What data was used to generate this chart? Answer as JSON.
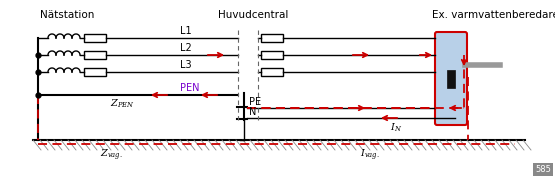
{
  "bg_color": "#ffffff",
  "line_color": "#000000",
  "red_color": "#cc0000",
  "labels": {
    "natstation": "Nätstation",
    "huvudcentral": "Huvudcentral",
    "device": "Ex. varmvattenberedare",
    "L1": "L1",
    "L2": "L2",
    "L3": "L3",
    "PEN": "PEN",
    "PE": "PE",
    "N": "N",
    "Z_PEN": "$Z_{PEN}$",
    "Z_vag": "$Z_{vag.}$",
    "I_vag": "$I_{vag.}$",
    "I_N": "$I_N$"
  },
  "page_num": "585",
  "figsize": [
    5.55,
    1.79
  ],
  "dpi": 100,
  "yL1": 38,
  "yL2": 55,
  "yL3": 72,
  "yPEN": 95,
  "yGND": 140,
  "xLeft": 38,
  "xCoilStart": 48,
  "xFuse1End": 125,
  "xHC1": 238,
  "xHC2": 258,
  "xFuse2End": 310,
  "xDev": 435,
  "xDevRight": 465,
  "xRight": 520
}
